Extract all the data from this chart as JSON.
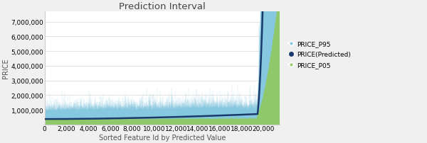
{
  "title": "Prediction Interval",
  "xlabel": "Sorted Feature Id by Predicted Value",
  "ylabel": "PRICE",
  "n_points": 21500,
  "x_max": 21500,
  "ylim": [
    0,
    7700000
  ],
  "yticks": [
    1000000,
    2000000,
    3000000,
    4000000,
    5000000,
    6000000,
    7000000
  ],
  "xticks": [
    0,
    2000,
    4000,
    6000,
    8000,
    10000,
    12000,
    14000,
    16000,
    18000,
    20000
  ],
  "color_p95": "#85C8E0",
  "color_predicted": "#1A3A6B",
  "color_p05": "#96CC6A",
  "legend_labels": [
    "PRICE_P95",
    "PRICE(Predicted)",
    "PRICE_P05"
  ],
  "background_color": "#f0f0f0",
  "plot_bg": "#ffffff",
  "title_fontsize": 9.5,
  "label_fontsize": 7,
  "tick_fontsize": 6.5
}
